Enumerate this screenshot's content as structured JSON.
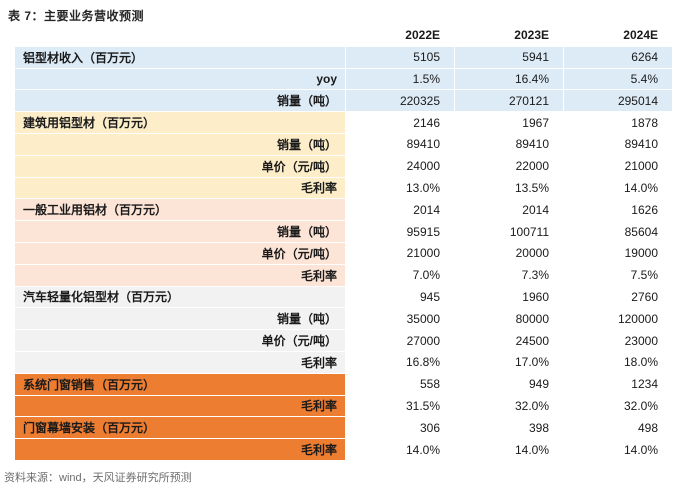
{
  "title": "表 7：主要业务营收预测",
  "source": "资料来源：wind，天风证券研究所预测",
  "columns": [
    "2022E",
    "2023E",
    "2024E"
  ],
  "colors": {
    "blue": "#DDEBF7",
    "yellow": "#FDEEC9",
    "pink": "#FCE4D6",
    "gray": "#F2F2F2",
    "orange": "#ED7D31",
    "white": "#FFFFFF"
  },
  "table": {
    "sections": [
      {
        "bg": "blue",
        "full_row_bg": true,
        "rows": [
          {
            "label": "铝型材收入（百万元）",
            "align": "left",
            "values": [
              "5105",
              "5941",
              "6264"
            ]
          },
          {
            "label": "yoy",
            "align": "right",
            "values": [
              "1.5%",
              "16.4%",
              "5.4%"
            ]
          },
          {
            "label": "销量（吨）",
            "align": "right",
            "values": [
              "220325",
              "270121",
              "295014"
            ]
          }
        ]
      },
      {
        "bg": "yellow",
        "full_row_bg": false,
        "rows": [
          {
            "label": "建筑用铝型材（百万元）",
            "align": "left",
            "values": [
              "2146",
              "1967",
              "1878"
            ]
          },
          {
            "label": "销量（吨）",
            "align": "right",
            "values": [
              "89410",
              "89410",
              "89410"
            ]
          },
          {
            "label": "单价（元/吨）",
            "align": "right",
            "values": [
              "24000",
              "22000",
              "21000"
            ]
          },
          {
            "label": "毛利率",
            "align": "right",
            "values": [
              "13.0%",
              "13.5%",
              "14.0%"
            ]
          }
        ]
      },
      {
        "bg": "pink",
        "full_row_bg": false,
        "rows": [
          {
            "label": "一般工业用铝材（百万元）",
            "align": "left",
            "values": [
              "2014",
              "2014",
              "1626"
            ]
          },
          {
            "label": "销量（吨）",
            "align": "right",
            "values": [
              "95915",
              "100711",
              "85604"
            ]
          },
          {
            "label": "单价（元/吨）",
            "align": "right",
            "values": [
              "21000",
              "20000",
              "19000"
            ]
          },
          {
            "label": "毛利率",
            "align": "right",
            "values": [
              "7.0%",
              "7.3%",
              "7.5%"
            ]
          }
        ]
      },
      {
        "bg": "gray",
        "full_row_bg": false,
        "rows": [
          {
            "label": "汽车轻量化铝型材（百万元）",
            "align": "left",
            "values": [
              "945",
              "1960",
              "2760"
            ]
          },
          {
            "label": "销量（吨）",
            "align": "right",
            "values": [
              "35000",
              "80000",
              "120000"
            ]
          },
          {
            "label": "单价（元/吨）",
            "align": "right",
            "values": [
              "27000",
              "24500",
              "23000"
            ]
          },
          {
            "label": "毛利率",
            "align": "right",
            "values": [
              "16.8%",
              "17.0%",
              "18.0%"
            ]
          }
        ]
      },
      {
        "bg": "orange",
        "full_row_bg": false,
        "rows": [
          {
            "label": "系统门窗销售（百万元）",
            "align": "left",
            "values": [
              "558",
              "949",
              "1234"
            ]
          },
          {
            "label": "毛利率",
            "align": "right",
            "values": [
              "31.5%",
              "32.0%",
              "32.0%"
            ]
          }
        ]
      },
      {
        "bg": "orange",
        "full_row_bg": false,
        "rows": [
          {
            "label": "门窗幕墙安装（百万元）",
            "align": "left",
            "values": [
              "306",
              "398",
              "498"
            ]
          },
          {
            "label": "毛利率",
            "align": "right",
            "values": [
              "14.0%",
              "14.0%",
              "14.0%"
            ]
          }
        ]
      }
    ]
  }
}
